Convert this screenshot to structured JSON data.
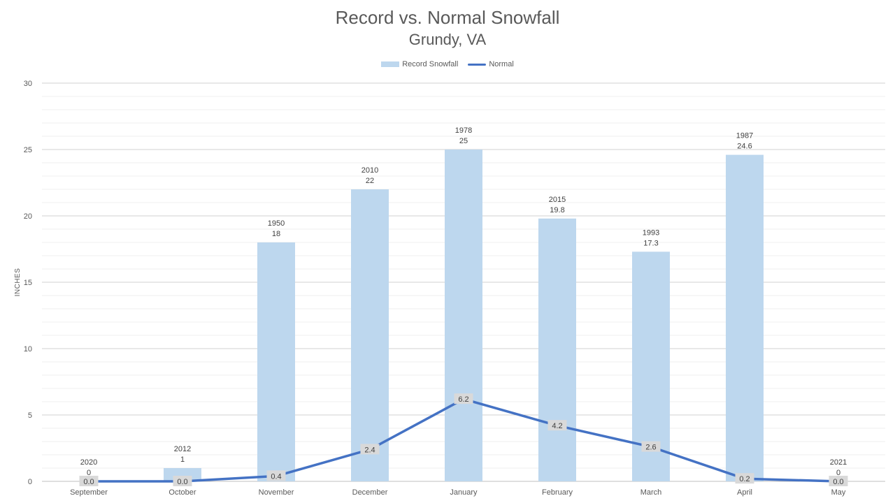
{
  "chart_data": {
    "type": "bar",
    "title": "Record vs. Normal Snowfall",
    "subtitle": "Grundy, VA",
    "ylabel": "INCHES",
    "xlabel": "",
    "ylim": [
      0,
      30
    ],
    "yticks": [
      0,
      5,
      10,
      15,
      20,
      25,
      30
    ],
    "grid": true,
    "legend_position": "top-center",
    "categories": [
      "September",
      "October",
      "November",
      "December",
      "January",
      "February",
      "March",
      "April",
      "May"
    ],
    "series": [
      {
        "name": "Record Snowfall",
        "type": "bar",
        "color": "#BDD7EE",
        "values": [
          0,
          1,
          18,
          22,
          25,
          19.8,
          17.3,
          24.6,
          0
        ],
        "years": [
          "2020",
          "2012",
          "1950",
          "2010",
          "1978",
          "2015",
          "1993",
          "1987",
          "2021"
        ],
        "value_labels": [
          "0",
          "1",
          "18",
          "22",
          "25",
          "19.8",
          "17.3",
          "24.6",
          "0"
        ]
      },
      {
        "name": "Normal",
        "type": "line",
        "color": "#4472C4",
        "values": [
          0.0,
          0.0,
          0.4,
          2.4,
          6.2,
          4.2,
          2.6,
          0.2,
          0.0
        ],
        "value_labels": [
          "0.0",
          "0.0",
          "0.4",
          "2.4",
          "6.2",
          "4.2",
          "2.6",
          "0.2",
          "0.0"
        ]
      }
    ]
  }
}
